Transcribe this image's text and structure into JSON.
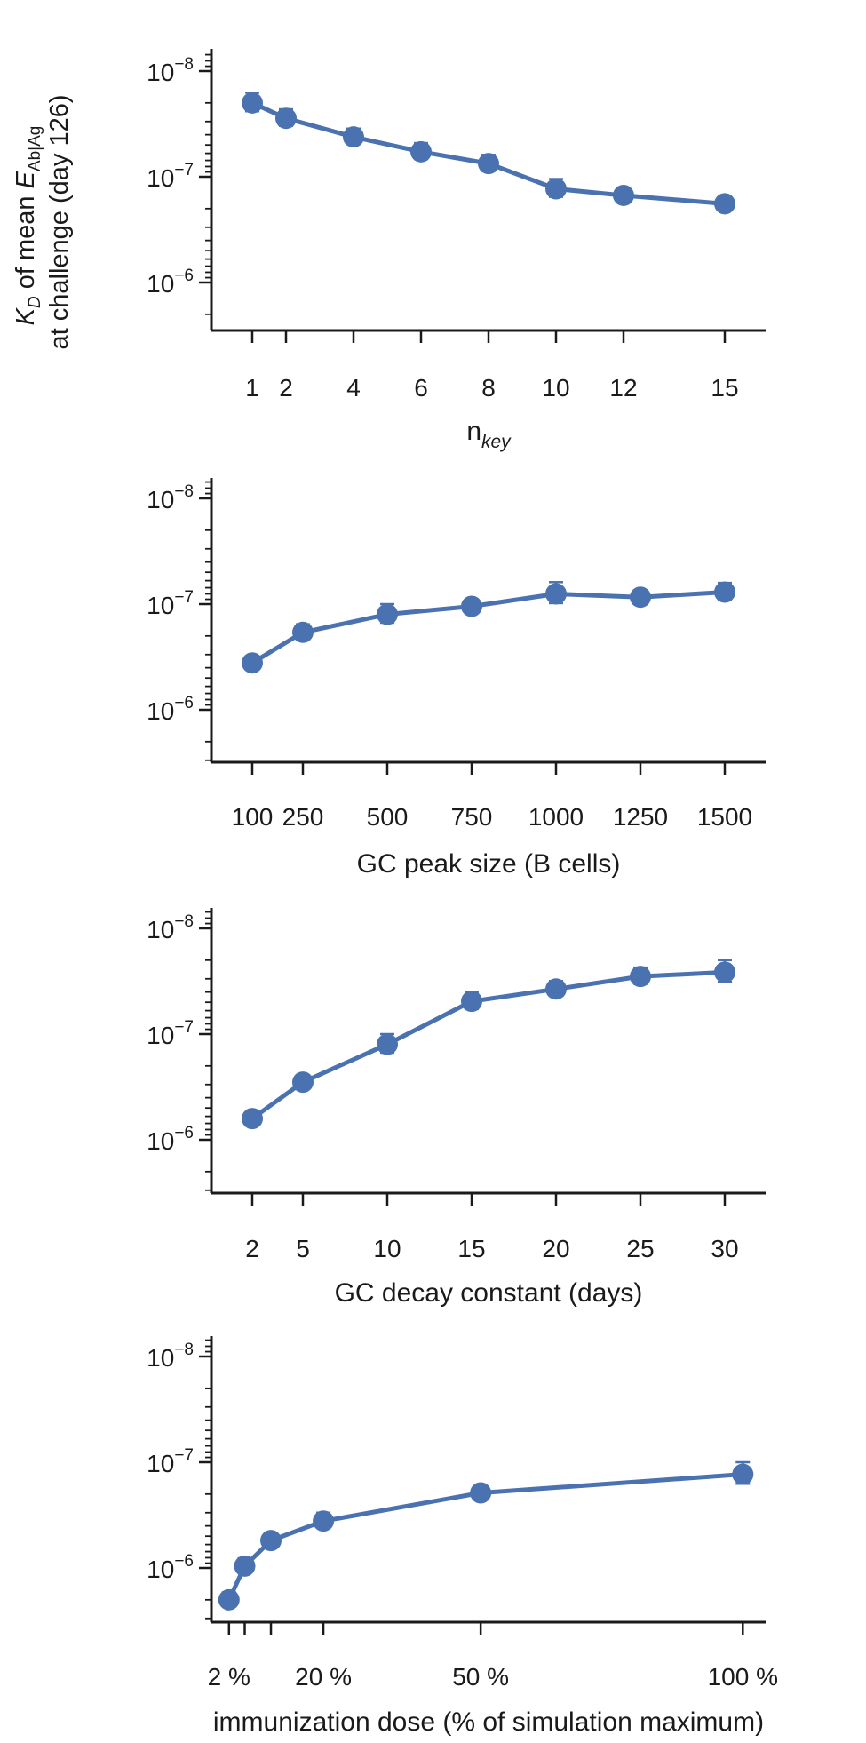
{
  "figure": {
    "ylabel_line1_prefix": "K",
    "ylabel_line1_sub1": "D",
    "ylabel_line1_mid": " of mean ",
    "ylabel_line1_e": "E",
    "ylabel_line1_sub2": "Ab|Ag",
    "ylabel_line2": "at challenge (day 126)",
    "ytick_base": "10",
    "colors": {
      "series": "#4a72b0",
      "axis": "#1a1a1a"
    }
  },
  "chart_data": [
    {
      "type": "line",
      "xlabel": "n",
      "xlabel_sub": "key",
      "x": [
        1,
        2,
        4,
        6,
        8,
        10,
        12,
        15
      ],
      "x_tick_labels": [
        "1",
        "2",
        "4",
        "6",
        "8",
        "10",
        "12",
        "15"
      ],
      "xlim": [
        0.0,
        16.0
      ],
      "y": [
        2e-08,
        2.8e-08,
        4.2e-08,
        5.8e-08,
        7.5e-08,
        1.3e-07,
        1.5e-07,
        1.8e-07
      ],
      "yerr": [
        4e-09,
        5e-09,
        7e-09,
        1e-08,
        1.3e-08,
        2.5e-08,
        2e-08,
        2e-08
      ],
      "y_scale": "log",
      "y_inverted": true,
      "y_ticks": [
        1e-08,
        1e-07,
        1e-06
      ],
      "y_tick_exponents": [
        "−8",
        "−7",
        "−6"
      ],
      "ylim": [
        7e-09,
        1.2e-05
      ]
    },
    {
      "type": "line",
      "xlabel": "GC peak size (B cells)",
      "x": [
        100,
        250,
        500,
        750,
        1000,
        1250,
        1500
      ],
      "x_tick_labels": [
        "100",
        "250",
        "500",
        "750",
        "1000",
        "1250",
        "1500"
      ],
      "xlim": [
        0,
        1600
      ],
      "y": [
        3.6e-07,
        1.85e-07,
        1.25e-07,
        1.05e-07,
        8e-08,
        8.6e-08,
        7.7e-08
      ],
      "yerr": [
        5e-08,
        3e-08,
        2.5e-08,
        1.5e-08,
        1.8e-08,
        1.2e-08,
        1.4e-08
      ],
      "y_scale": "log",
      "y_inverted": true,
      "y_ticks": [
        1e-08,
        1e-07,
        1e-06
      ],
      "y_tick_exponents": [
        "−8",
        "−7",
        "−6"
      ],
      "ylim": [
        7e-09,
        1.2e-05
      ]
    },
    {
      "type": "line",
      "xlabel": "GC decay constant (days)",
      "x": [
        2,
        5,
        10,
        15,
        20,
        25,
        30
      ],
      "x_tick_labels": [
        "2",
        "5",
        "10",
        "15",
        "20",
        "25",
        "30"
      ],
      "xlim": [
        0,
        32
      ],
      "y": [
        6.3e-07,
        2.85e-07,
        1.25e-07,
        4.9e-08,
        3.75e-08,
        2.85e-08,
        2.6e-08
      ],
      "yerr": [
        8e-08,
        4e-08,
        2.5e-08,
        9e-09,
        6e-09,
        5e-09,
        6e-09
      ],
      "y_scale": "log",
      "y_inverted": true,
      "y_ticks": [
        1e-08,
        1e-07,
        1e-06
      ],
      "y_tick_exponents": [
        "−8",
        "−7",
        "−6"
      ],
      "ylim": [
        7e-09,
        1.2e-05
      ]
    },
    {
      "type": "line",
      "xlabel": "immunization dose (% of simulation maximum)",
      "x": [
        2,
        5,
        10,
        20,
        50,
        100
      ],
      "x_tick_labels": [
        "2 %",
        "20 %",
        "50 %",
        "100 %"
      ],
      "x_tick_values": [
        2,
        20,
        50,
        100
      ],
      "xlim": [
        0,
        103
      ],
      "y": [
        2e-06,
        9.6e-07,
        5.5e-07,
        3.6e-07,
        1.95e-07,
        1.3e-07
      ],
      "yerr": [
        3e-07,
        1.5e-07,
        8e-08,
        6e-08,
        2.5e-08,
        3e-08
      ],
      "y_scale": "log",
      "y_inverted": true,
      "y_ticks": [
        1e-08,
        1e-07,
        1e-06
      ],
      "y_tick_exponents": [
        "−8",
        "−7",
        "−6"
      ],
      "ylim": [
        7e-09,
        2.6e-06
      ]
    }
  ]
}
